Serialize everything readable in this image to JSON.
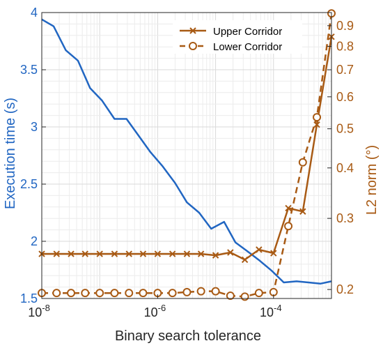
{
  "chart_data": {
    "type": "line",
    "title": "",
    "xlabel": "Binary search tolerance",
    "ylabel_left": "Execution time (s)",
    "ylabel_right": "L2 norm (°)",
    "x_scale": "log",
    "xlim": [
      1e-08,
      0.001
    ],
    "x_ticks": [
      {
        "value": 1e-08,
        "base": "10",
        "exp": "-8"
      },
      {
        "value": 1e-06,
        "base": "10",
        "exp": "-6"
      },
      {
        "value": 0.0001,
        "base": "10",
        "exp": "-4"
      }
    ],
    "ylim_left": [
      1.5,
      4
    ],
    "y_ticks_left": [
      "1.5",
      "2",
      "2.5",
      "3",
      "3.5",
      "4"
    ],
    "right_scale": "log",
    "ylim_right": [
      0.19,
      0.97
    ],
    "y_ticks_right": [
      "0.2",
      "0.3",
      "0.4",
      "0.5",
      "0.6",
      "0.7",
      "0.8",
      "0.9"
    ],
    "grid": true,
    "legend_position": "top-right",
    "colors": {
      "left_axis": "#2166C2",
      "right_axis": "#A85A14",
      "series_blue": "#2166C2",
      "series_orange": "#A85A14"
    },
    "x": [
      1e-08,
      1.6e-08,
      2.6e-08,
      4.2e-08,
      6.8e-08,
      1.1e-07,
      1.8e-07,
      2.9e-07,
      4.6e-07,
      7.5e-07,
      1.2e-06,
      2e-06,
      3.2e-06,
      5.2e-06,
      8.4e-06,
      1.4e-05,
      2.2e-05,
      3.6e-05,
      5.8e-05,
      9.4e-05,
      0.00015,
      0.00025,
      0.0004,
      0.00065,
      0.001
    ],
    "series": [
      {
        "name": "",
        "axis": "left",
        "style": "solid",
        "marker": "none",
        "values": [
          3.94,
          3.88,
          3.67,
          3.58,
          3.34,
          3.23,
          3.07,
          3.07,
          2.93,
          2.78,
          2.66,
          2.51,
          2.34,
          2.25,
          2.11,
          2.17,
          1.99,
          1.91,
          1.83,
          1.74,
          1.64,
          1.65,
          1.64,
          1.63,
          1.65
        ]
      },
      {
        "name": "Upper Corridor",
        "axis": "right",
        "style": "solid",
        "marker": "x",
        "x": [
          1e-08,
          1.8e-08,
          3.2e-08,
          5.6e-08,
          1e-07,
          1.8e-07,
          3.2e-07,
          5.6e-07,
          1e-06,
          1.8e-06,
          3.2e-06,
          5.6e-06,
          1e-05,
          1.8e-05,
          3.2e-05,
          5.6e-05,
          0.0001,
          0.00018,
          0.00032,
          0.00056,
          0.001
        ],
        "values": [
          0.245,
          0.245,
          0.245,
          0.245,
          0.245,
          0.245,
          0.245,
          0.245,
          0.245,
          0.245,
          0.245,
          0.245,
          0.243,
          0.247,
          0.237,
          0.251,
          0.246,
          0.318,
          0.312,
          0.512,
          0.845
        ]
      },
      {
        "name": "Lower Corridor",
        "axis": "right",
        "style": "dashed",
        "marker": "o",
        "x": [
          1e-08,
          1.8e-08,
          3.2e-08,
          5.6e-08,
          1e-07,
          1.8e-07,
          3.2e-07,
          5.6e-07,
          1e-06,
          1.8e-06,
          3.2e-06,
          5.6e-06,
          1e-05,
          1.8e-05,
          3.2e-05,
          5.6e-05,
          0.0001,
          0.00018,
          0.00032,
          0.00056,
          0.001
        ],
        "values": [
          0.196,
          0.196,
          0.196,
          0.196,
          0.196,
          0.196,
          0.196,
          0.196,
          0.196,
          0.196,
          0.197,
          0.198,
          0.198,
          0.193,
          0.192,
          0.196,
          0.197,
          0.287,
          0.413,
          0.534,
          0.965
        ]
      }
    ]
  }
}
